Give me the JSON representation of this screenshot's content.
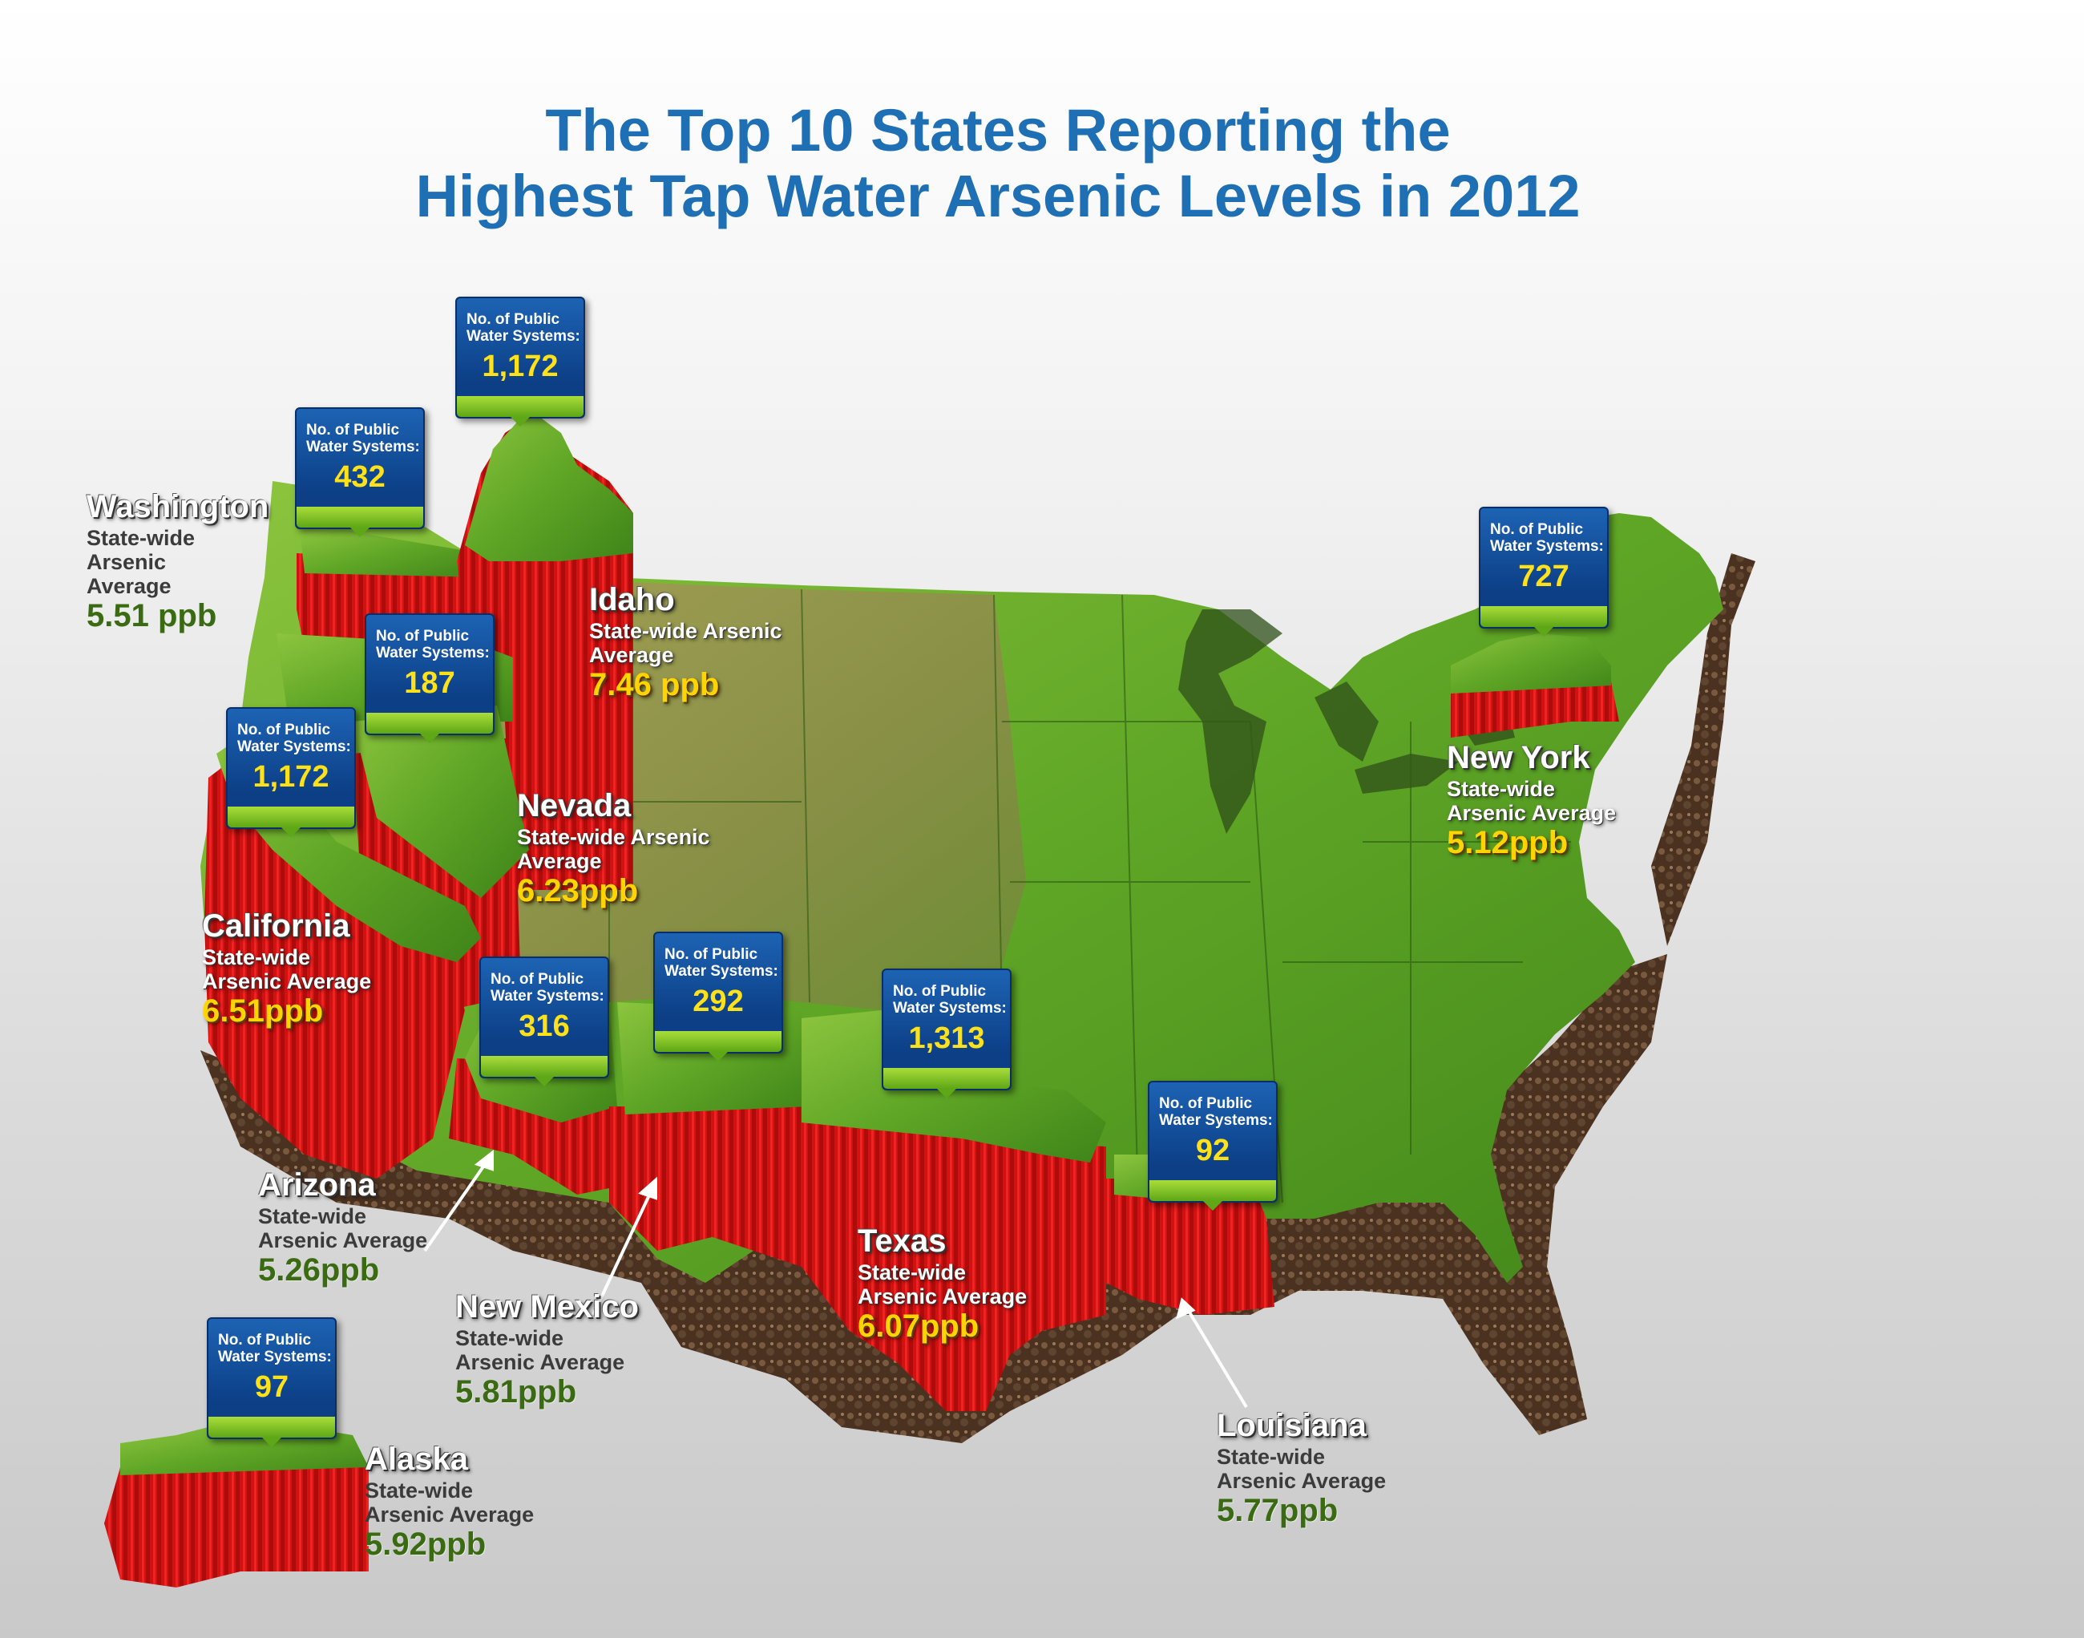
{
  "title": {
    "line1": "The Top 10 States Reporting the",
    "line2": "Highest Tap Water Arsenic Levels in 2012"
  },
  "box_label": "No. of Public Water Systems:",
  "states": {
    "washington": {
      "name": "Washington",
      "desc": "State-wide Arsenic Average",
      "value": "5.51 ppb",
      "systems": "432"
    },
    "idaho": {
      "name": "Idaho",
      "desc": "State-wide Arsenic Average",
      "value": "7.46 ppb",
      "systems": "1,172"
    },
    "nevada": {
      "name": "Nevada",
      "desc": "State-wide Arsenic Average",
      "value": "6.23ppb",
      "systems": "187"
    },
    "california": {
      "name": "California",
      "desc": "State-wide Arsenic Average",
      "value": "6.51ppb",
      "systems": "1,172"
    },
    "arizona": {
      "name": "Arizona",
      "desc": "State-wide Arsenic Average",
      "value": "5.26ppb",
      "systems": "316"
    },
    "new_mexico": {
      "name": "New Mexico",
      "desc": "State-wide Arsenic Average",
      "value": "5.81ppb",
      "systems": "292"
    },
    "texas": {
      "name": "Texas",
      "desc": "State-wide Arsenic Average",
      "value": "6.07ppb",
      "systems": "1,313"
    },
    "louisiana": {
      "name": "Louisiana",
      "desc": "State-wide Arsenic Average",
      "value": "5.77ppb",
      "systems": "92"
    },
    "new_york": {
      "name": "New York",
      "desc": "State-wide Arsenic Average",
      "value": "5.12ppb",
      "systems": "727"
    },
    "alaska": {
      "name": "Alaska",
      "desc": "State-wide Arsenic Average",
      "value": "5.92ppb",
      "systems": "97"
    }
  },
  "colors": {
    "title": "#1f6fb5",
    "land": "#4f9a1f",
    "highlight_wall": "#e01010",
    "soil": "#5a3a22",
    "value_green": "#3a6b12",
    "value_yellow": "#ffd400"
  }
}
